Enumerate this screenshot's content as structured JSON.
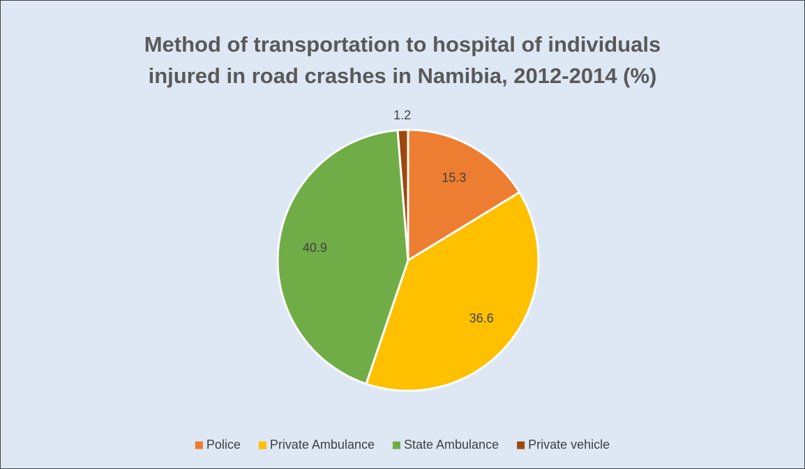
{
  "chart_data": {
    "type": "pie",
    "title": "Method of transportation to hospital of individuals injured in road crashes in Namibia, 2012-2014 (%)",
    "categories": [
      "Police",
      "Private Ambulance",
      "State Ambulance",
      "Private vehicle"
    ],
    "values": [
      15.3,
      36.6,
      40.9,
      1.2
    ],
    "colors": [
      "#ed7d31",
      "#ffc000",
      "#70ad47",
      "#9e480e"
    ],
    "legend": "bottom"
  }
}
